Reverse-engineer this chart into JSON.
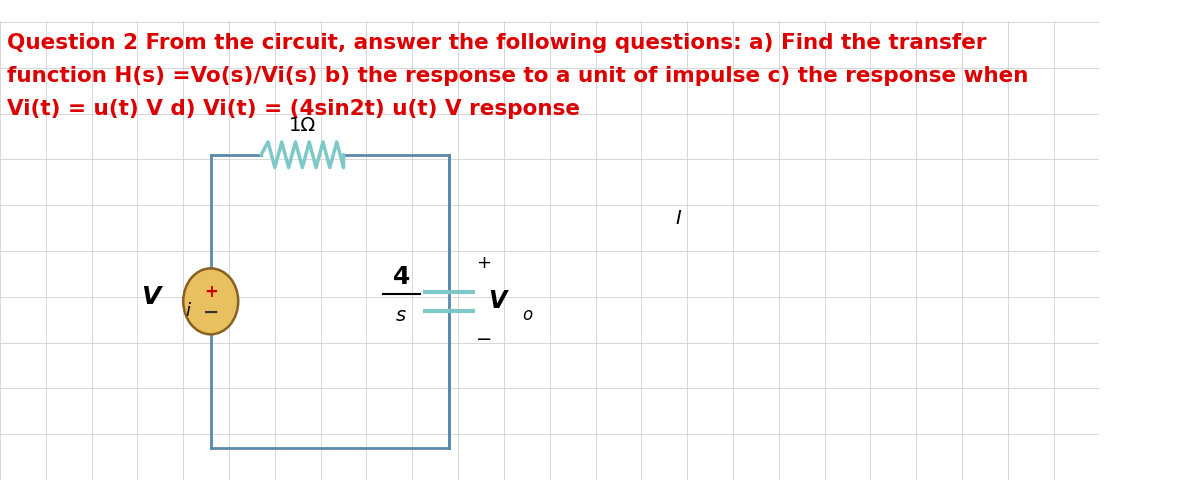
{
  "background_color": "#ffffff",
  "grid_color": "#c8c8c8",
  "title_text_line1": "Question 2 From the circuit, answer the following questions: a) Find the transfer",
  "title_text_line2": "function H(s) =Vo(s)/Vi(s) b) the response to a unit of impulse c) the response when",
  "title_text_line3": "Vi(t) = u(t) V d) Vi(t) = (4sin2t) u(t) V response",
  "text_color": "#dd0000",
  "text_fontsize": 15.5,
  "circuit_color": "#5a8aaa",
  "circuit_lw": 2.0,
  "resistor_color": "#7ec8c8",
  "resistor_label": "1Ω",
  "capacitor_label_num": "4",
  "capacitor_label_den": "s",
  "vi_label": "V",
  "vi_sub": "i",
  "vo_label": "V",
  "vo_sub": "o",
  "plus_label": "+",
  "minus_label": "−",
  "current_label": "I",
  "source_fill": "#e8c060",
  "source_edge": "#8a6020",
  "fig_width": 12.0,
  "fig_height": 5.01
}
